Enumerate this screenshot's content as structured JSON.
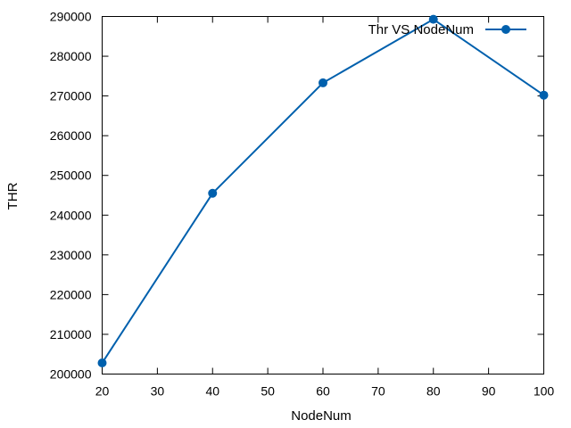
{
  "chart_data": {
    "type": "line",
    "xlabel": "NodeNum",
    "ylabel": "THR",
    "xlim": [
      20,
      100
    ],
    "ylim": [
      200000,
      290000
    ],
    "x_ticks": [
      20,
      30,
      40,
      50,
      60,
      70,
      80,
      90,
      100
    ],
    "y_ticks": [
      200000,
      210000,
      220000,
      230000,
      240000,
      250000,
      260000,
      270000,
      280000,
      290000
    ],
    "legend_position": "top-right",
    "grid": false,
    "series": [
      {
        "name": "Thr VS NodeNum",
        "color": "#0060ad",
        "marker": "circle",
        "x": [
          20,
          40,
          60,
          80,
          100
        ],
        "y": [
          202800,
          245500,
          273300,
          289300,
          270200
        ]
      }
    ]
  }
}
